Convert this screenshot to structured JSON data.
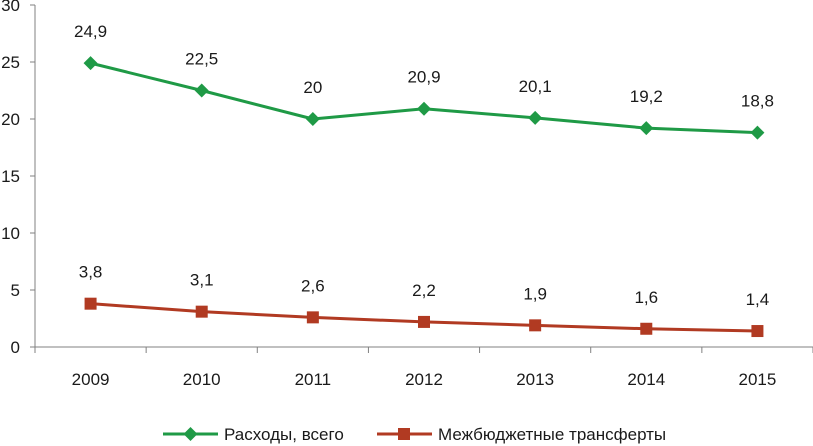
{
  "chart_data": {
    "type": "line",
    "categories": [
      "2009",
      "2010",
      "2011",
      "2012",
      "2013",
      "2014",
      "2015"
    ],
    "ylim": [
      0,
      30
    ],
    "yticks": [
      0,
      5,
      10,
      15,
      20,
      25,
      30
    ],
    "ytick_labels": [
      "0",
      "5",
      "10",
      "15",
      "20",
      "25",
      "30"
    ],
    "grid": false,
    "legend_position": "bottom",
    "series": [
      {
        "name": "Расходы, всего",
        "values": [
          24.9,
          22.5,
          20,
          20.9,
          20.1,
          19.2,
          18.8
        ],
        "labels": [
          "24,9",
          "22,5",
          "20",
          "20,9",
          "20,1",
          "19,2",
          "18,8"
        ],
        "color": "#1f9a46",
        "marker": "diamond"
      },
      {
        "name": "Межбюджетные трансферты",
        "values": [
          3.8,
          3.1,
          2.6,
          2.2,
          1.9,
          1.6,
          1.4
        ],
        "labels": [
          "3,8",
          "3,1",
          "2,6",
          "2,2",
          "1,9",
          "1,6",
          "1,4"
        ],
        "color": "#b13a22",
        "marker": "square"
      }
    ]
  }
}
